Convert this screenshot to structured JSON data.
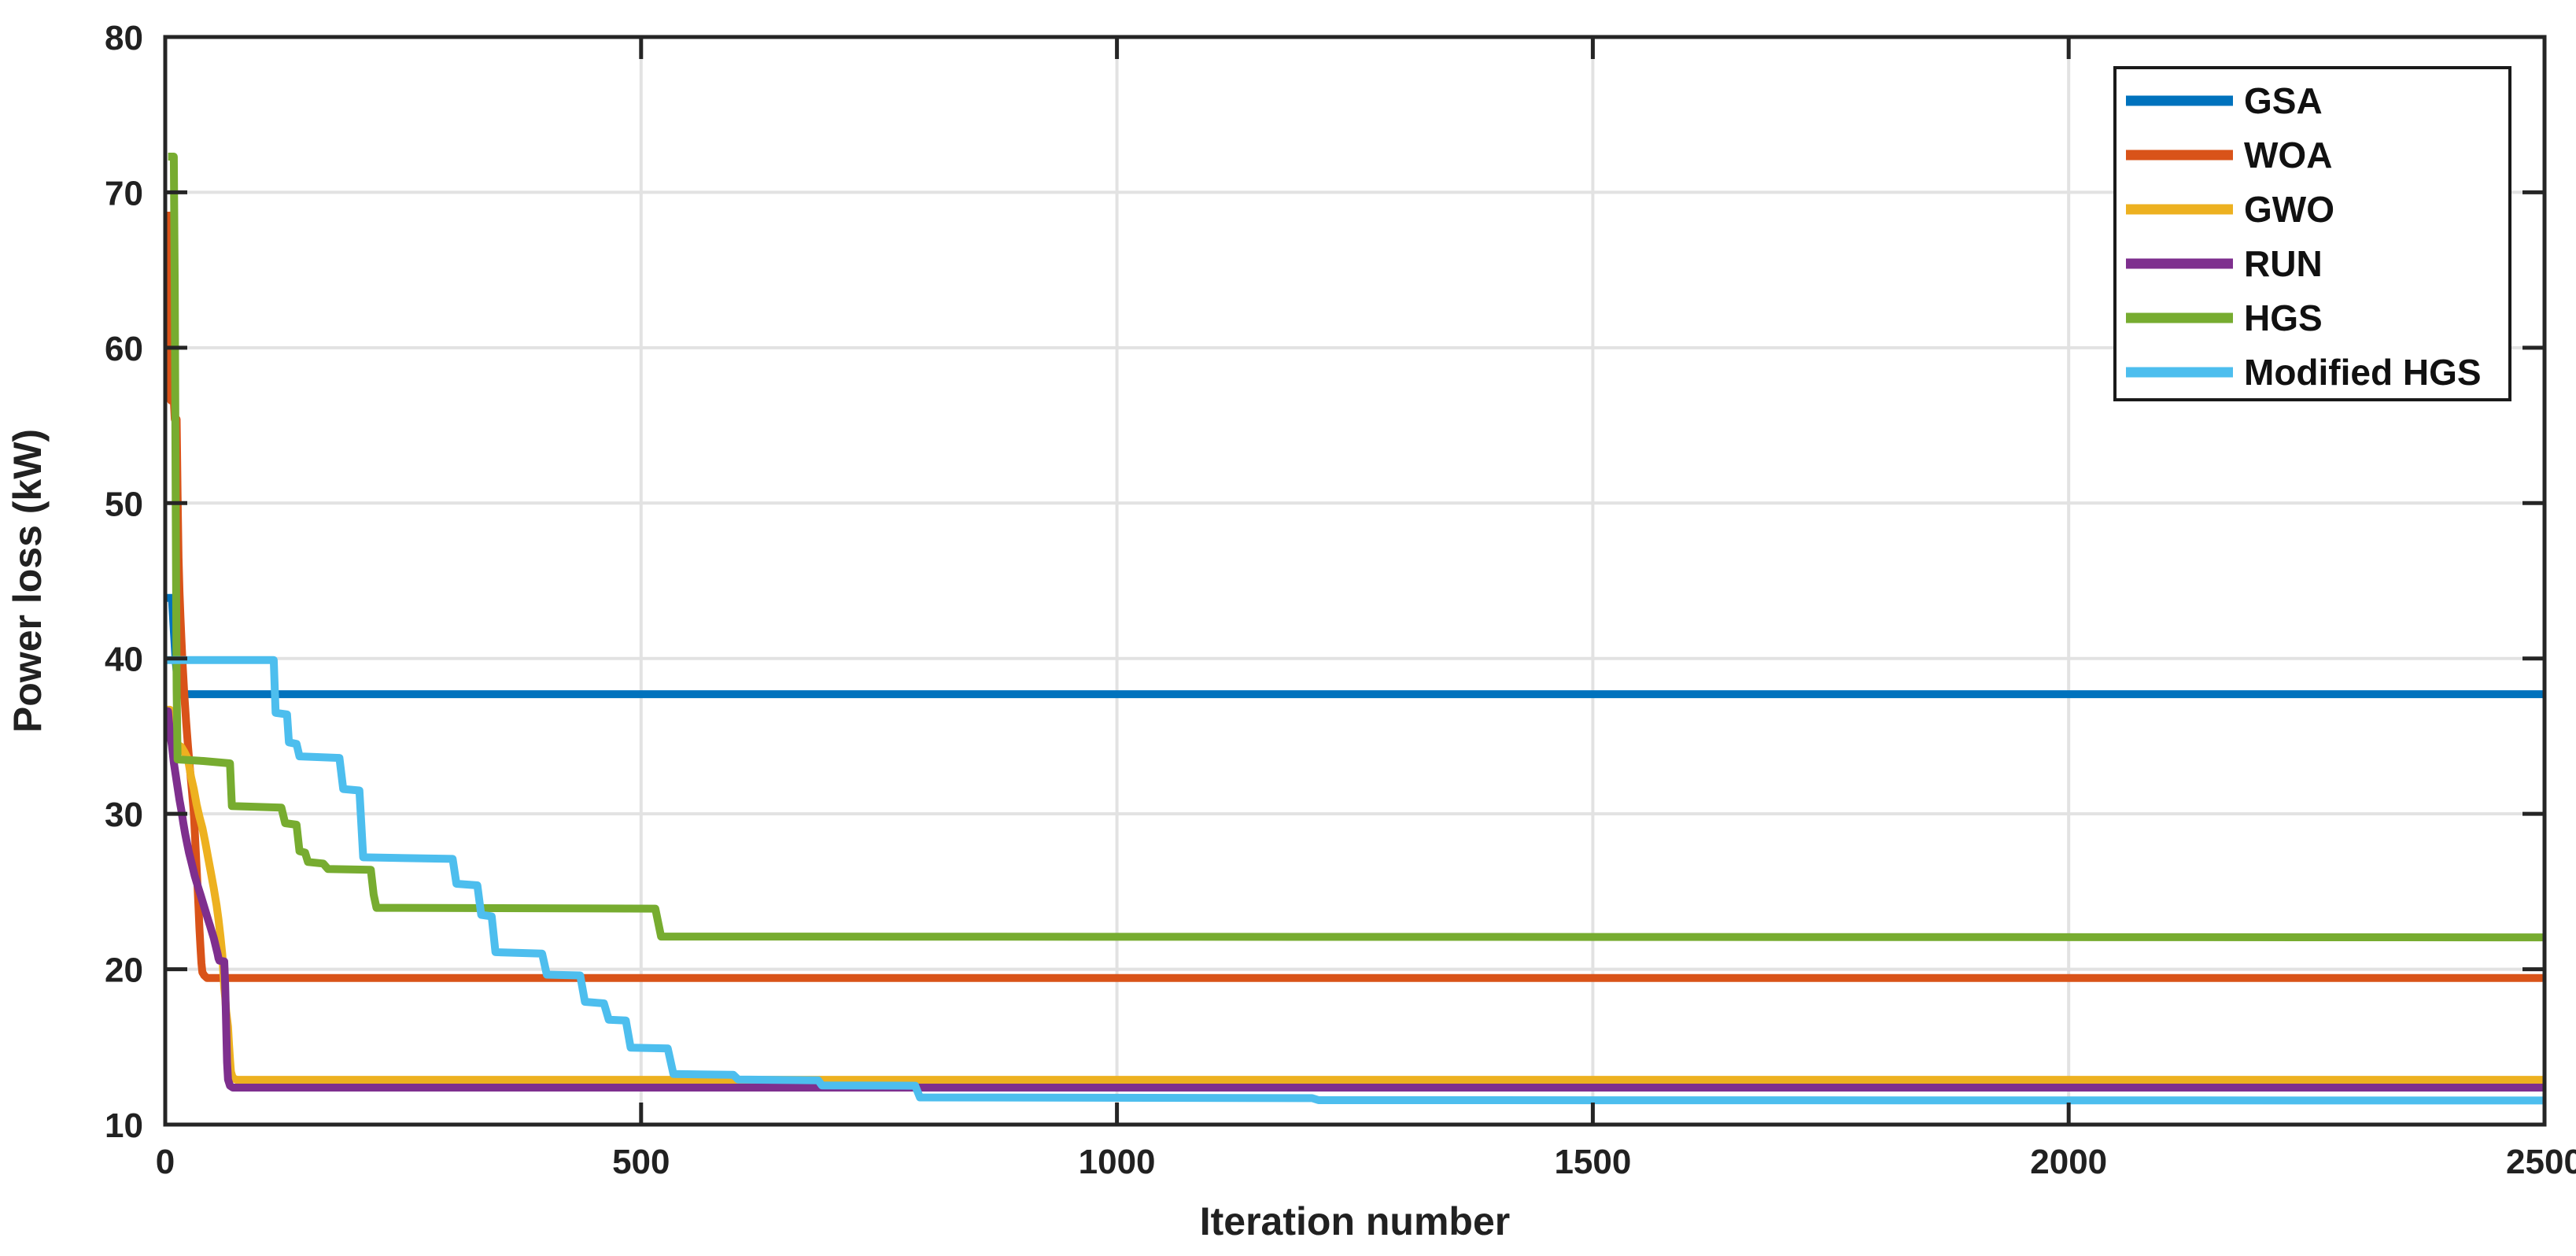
{
  "figure": {
    "background": "#ffffff",
    "axis_color": "#252525",
    "grid_color": "#e2e2e2"
  },
  "chart_data": {
    "type": "line",
    "title": "",
    "xlabel": "Iteration number",
    "ylabel": "Power loss (kW)",
    "xlim": [
      0,
      2500
    ],
    "ylim": [
      10,
      80
    ],
    "xticks": [
      0,
      500,
      1000,
      1500,
      2000,
      2500
    ],
    "yticks": [
      10,
      20,
      30,
      40,
      50,
      60,
      70,
      80
    ],
    "grid": true,
    "legend_position": "top-right",
    "line_width": 10,
    "series": [
      {
        "name": "GSA",
        "color": "#0072BD",
        "final_value": 37.7,
        "points": [
          [
            0,
            43.9
          ],
          [
            7,
            43.9
          ],
          [
            9,
            41.8
          ],
          [
            11,
            39.8
          ],
          [
            13,
            38.5
          ],
          [
            15,
            37.7
          ],
          [
            2500,
            37.7
          ]
        ]
      },
      {
        "name": "WOA",
        "color": "#D95319",
        "final_value": 19.4,
        "points": [
          [
            2,
            68.5
          ],
          [
            5,
            68.5
          ],
          [
            6,
            56.6
          ],
          [
            9,
            56.6
          ],
          [
            10,
            55.4
          ],
          [
            12,
            55.4
          ],
          [
            13,
            50.5
          ],
          [
            14,
            46.5
          ],
          [
            15,
            44.3
          ],
          [
            16,
            42.6
          ],
          [
            17,
            41.2
          ],
          [
            18,
            39.9
          ],
          [
            19,
            38.8
          ],
          [
            20,
            37.7
          ],
          [
            22,
            35.9
          ],
          [
            24,
            34.3
          ],
          [
            26,
            32.9
          ],
          [
            28,
            31.5
          ],
          [
            30,
            30.1
          ],
          [
            31,
            28.9
          ],
          [
            32,
            27.7
          ],
          [
            33,
            26.5
          ],
          [
            34,
            25.3
          ],
          [
            35,
            24.0
          ],
          [
            36,
            22.6
          ],
          [
            37,
            21.4
          ],
          [
            38,
            20.4
          ],
          [
            39,
            19.8
          ],
          [
            41,
            19.6
          ],
          [
            44,
            19.43
          ],
          [
            2500,
            19.43
          ]
        ]
      },
      {
        "name": "GWO",
        "color": "#EDB120",
        "final_value": 12.9,
        "points": [
          [
            0,
            36.7
          ],
          [
            5,
            36.7
          ],
          [
            7,
            35.1
          ],
          [
            9,
            34.6
          ],
          [
            17,
            34.3
          ],
          [
            20,
            34.0
          ],
          [
            24,
            33.5
          ],
          [
            27,
            32.4
          ],
          [
            30,
            31.6
          ],
          [
            33,
            30.6
          ],
          [
            36,
            29.8
          ],
          [
            39,
            29.1
          ],
          [
            42,
            28.2
          ],
          [
            45,
            27.2
          ],
          [
            48,
            26.2
          ],
          [
            51,
            25.2
          ],
          [
            54,
            24.1
          ],
          [
            56,
            23.2
          ],
          [
            58,
            22.1
          ],
          [
            60,
            20.9
          ],
          [
            61,
            19.8
          ],
          [
            62,
            18.8
          ],
          [
            63,
            18.2
          ],
          [
            64,
            17.3
          ],
          [
            65,
            16.8
          ],
          [
            66,
            16.3
          ],
          [
            67,
            15.2
          ],
          [
            68,
            14.2
          ],
          [
            69,
            13.4
          ],
          [
            71,
            13.0
          ],
          [
            75,
            12.88
          ],
          [
            2500,
            12.88
          ]
        ]
      },
      {
        "name": "RUN",
        "color": "#7E2F8E",
        "final_value": 12.4,
        "points": [
          [
            0,
            36.6
          ],
          [
            3,
            36.6
          ],
          [
            5,
            35.2
          ],
          [
            7,
            34.4
          ],
          [
            9,
            33.3
          ],
          [
            11,
            32.5
          ],
          [
            13,
            31.7
          ],
          [
            15,
            30.9
          ],
          [
            17,
            30.2
          ],
          [
            19,
            29.4
          ],
          [
            21,
            28.7
          ],
          [
            23,
            28.1
          ],
          [
            25,
            27.5
          ],
          [
            27,
            27.0
          ],
          [
            29,
            26.5
          ],
          [
            31,
            26.0
          ],
          [
            33,
            25.6
          ],
          [
            35,
            25.2
          ],
          [
            37,
            24.8
          ],
          [
            39,
            24.4
          ],
          [
            41,
            24.0
          ],
          [
            43,
            23.6
          ],
          [
            45,
            23.2
          ],
          [
            47,
            22.8
          ],
          [
            49,
            22.4
          ],
          [
            51,
            22.0
          ],
          [
            53,
            21.5
          ],
          [
            55,
            21.0
          ],
          [
            56,
            20.7
          ],
          [
            57,
            20.55
          ],
          [
            62,
            20.5
          ],
          [
            63,
            19.0
          ],
          [
            64,
            16.5
          ],
          [
            65,
            14.0
          ],
          [
            66,
            12.9
          ],
          [
            68,
            12.5
          ],
          [
            71,
            12.38
          ],
          [
            2500,
            12.38
          ]
        ]
      },
      {
        "name": "HGS",
        "color": "#77AC30",
        "final_value": 22.1,
        "points": [
          [
            3,
            72.3
          ],
          [
            9,
            72.3
          ],
          [
            10,
            64.0
          ],
          [
            11,
            50.0
          ],
          [
            12,
            38.0
          ],
          [
            13,
            33.5
          ],
          [
            40,
            33.4
          ],
          [
            68,
            33.25
          ],
          [
            70,
            30.5
          ],
          [
            122,
            30.4
          ],
          [
            126,
            29.4
          ],
          [
            138,
            29.3
          ],
          [
            141,
            27.6
          ],
          [
            147,
            27.5
          ],
          [
            150,
            26.9
          ],
          [
            166,
            26.8
          ],
          [
            171,
            26.45
          ],
          [
            216,
            26.4
          ],
          [
            219,
            24.8
          ],
          [
            222,
            23.95
          ],
          [
            515,
            23.9
          ],
          [
            521,
            22.1
          ],
          [
            2500,
            22.05
          ]
        ]
      },
      {
        "name": "Modified HGS",
        "color": "#4DBEEE",
        "final_value": 11.6,
        "points": [
          [
            0,
            39.9
          ],
          [
            114,
            39.9
          ],
          [
            116,
            36.5
          ],
          [
            128,
            36.4
          ],
          [
            130,
            34.6
          ],
          [
            138,
            34.5
          ],
          [
            141,
            33.7
          ],
          [
            183,
            33.6
          ],
          [
            187,
            31.6
          ],
          [
            204,
            31.5
          ],
          [
            208,
            27.2
          ],
          [
            302,
            27.1
          ],
          [
            306,
            25.5
          ],
          [
            328,
            25.4
          ],
          [
            332,
            23.5
          ],
          [
            343,
            23.4
          ],
          [
            347,
            21.1
          ],
          [
            396,
            21.0
          ],
          [
            401,
            19.65
          ],
          [
            436,
            19.6
          ],
          [
            441,
            17.9
          ],
          [
            461,
            17.8
          ],
          [
            466,
            16.75
          ],
          [
            484,
            16.7
          ],
          [
            489,
            14.95
          ],
          [
            528,
            14.9
          ],
          [
            534,
            13.25
          ],
          [
            597,
            13.2
          ],
          [
            602,
            12.9
          ],
          [
            686,
            12.85
          ],
          [
            690,
            12.52
          ],
          [
            788,
            12.5
          ],
          [
            793,
            11.75
          ],
          [
            1205,
            11.7
          ],
          [
            1212,
            11.57
          ],
          [
            2500,
            11.55
          ]
        ]
      }
    ]
  },
  "legend": {
    "border_color": "#1a1a1a",
    "items": [
      "GSA",
      "WOA",
      "GWO",
      "RUN",
      "HGS",
      "Modified HGS"
    ]
  }
}
